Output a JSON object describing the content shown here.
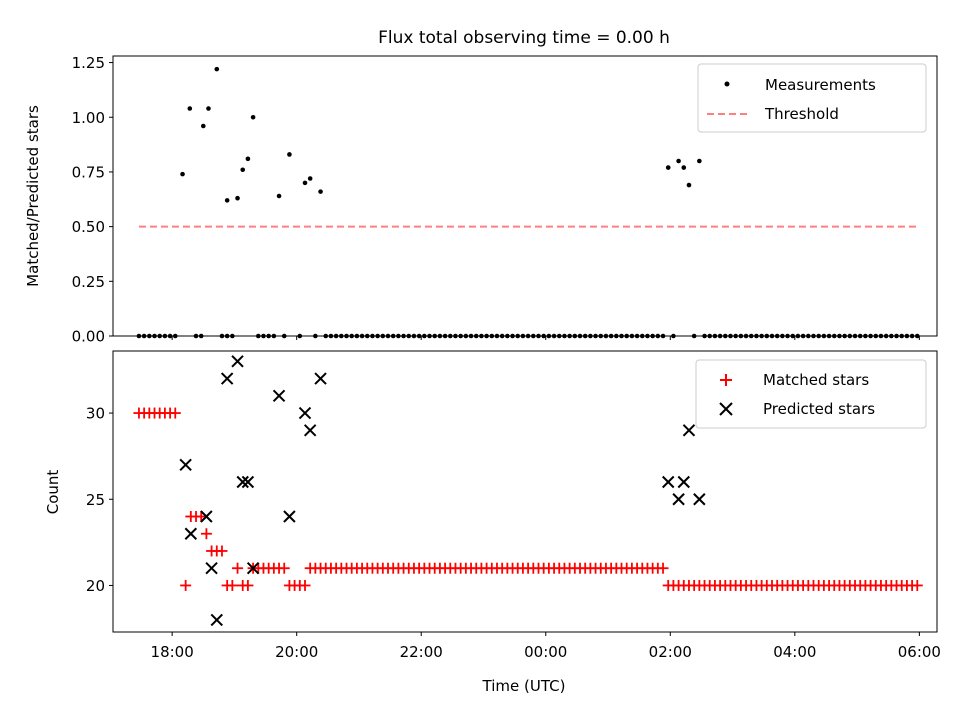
{
  "chart_data": [
    {
      "type": "scatter",
      "title": "Flux total observing time = 0.00 h",
      "xlabel": "",
      "ylabel": "Matched/Predicted stars",
      "xlim": [
        "17:03",
        "06:17"
      ],
      "ylim": [
        0,
        1.28
      ],
      "yticks": [
        0.0,
        0.25,
        0.5,
        0.75,
        1.0,
        1.25
      ],
      "yticklabels": [
        "0.00",
        "0.25",
        "0.50",
        "0.75",
        "1.00",
        "1.25"
      ],
      "legend_position": "top-right",
      "series": [
        {
          "name": "Measurements",
          "marker": "dot",
          "color": "#000000",
          "points": [
            [
              "18:10",
              0.74
            ],
            [
              "18:17",
              1.04
            ],
            [
              "18:30",
              0.96
            ],
            [
              "18:35",
              1.04
            ],
            [
              "18:43",
              1.22
            ],
            [
              "18:53",
              0.62
            ],
            [
              "19:03",
              0.63
            ],
            [
              "19:08",
              0.76
            ],
            [
              "19:13",
              0.81
            ],
            [
              "19:18",
              1.0
            ],
            [
              "19:43",
              0.64
            ],
            [
              "19:53",
              0.83
            ],
            [
              "20:08",
              0.7
            ],
            [
              "20:13",
              0.72
            ],
            [
              "20:23",
              0.66
            ],
            [
              "01:58",
              0.77
            ],
            [
              "02:08",
              0.8
            ],
            [
              "02:13",
              0.77
            ],
            [
              "02:18",
              0.69
            ],
            [
              "02:28",
              0.8
            ]
          ],
          "zero_runs": [
            [
              "17:28",
              "18:03"
            ],
            [
              "18:23",
              "18:28"
            ],
            [
              "18:48",
              "18:58"
            ],
            [
              "19:23",
              "19:38"
            ],
            [
              "19:48",
              "19:48"
            ],
            [
              "20:03",
              "20:03"
            ],
            [
              "20:18",
              "20:18"
            ],
            [
              "20:28",
              "01:53"
            ],
            [
              "02:03",
              "02:03"
            ],
            [
              "02:23",
              "02:23"
            ],
            [
              "02:33",
              "05:58"
            ]
          ]
        },
        {
          "name": "Threshold",
          "style": "dashed",
          "color": "#ff7f7f",
          "x": [
            "17:28",
            "05:58"
          ],
          "y": [
            0.5,
            0.5
          ]
        }
      ]
    },
    {
      "type": "scatter",
      "xlabel": "Time (UTC)",
      "ylabel": "Count",
      "xlim": [
        "17:03",
        "06:17"
      ],
      "ylim": [
        17.3,
        33.6
      ],
      "xticks": [
        "18:00",
        "20:00",
        "22:00",
        "00:00",
        "02:00",
        "04:00",
        "06:00"
      ],
      "yticks": [
        20,
        25,
        30
      ],
      "legend_position": "top-right",
      "series": [
        {
          "name": "Matched stars",
          "marker": "plus",
          "color": "#ff0000",
          "runs": [
            [
              "17:28",
              "18:03",
              30
            ],
            [
              "18:13",
              "18:13",
              20
            ],
            [
              "18:18",
              "18:28",
              24
            ],
            [
              "18:33",
              "18:33",
              23
            ],
            [
              "18:38",
              "18:48",
              22
            ],
            [
              "18:53",
              "18:58",
              20
            ],
            [
              "19:03",
              "19:03",
              21
            ],
            [
              "19:08",
              "19:13",
              20
            ],
            [
              "19:18",
              "19:48",
              21
            ],
            [
              "19:53",
              "20:08",
              20
            ],
            [
              "20:13",
              "01:53",
              21
            ],
            [
              "01:58",
              "05:58",
              20
            ]
          ]
        },
        {
          "name": "Predicted stars",
          "marker": "x",
          "color": "#000000",
          "points": [
            [
              "18:13",
              27
            ],
            [
              "18:18",
              23
            ],
            [
              "18:33",
              24
            ],
            [
              "18:38",
              21
            ],
            [
              "18:43",
              18
            ],
            [
              "18:53",
              32
            ],
            [
              "19:03",
              33
            ],
            [
              "19:08",
              26
            ],
            [
              "19:13",
              26
            ],
            [
              "19:18",
              21
            ],
            [
              "19:43",
              31
            ],
            [
              "19:53",
              24
            ],
            [
              "20:08",
              30
            ],
            [
              "20:13",
              29
            ],
            [
              "20:23",
              32
            ],
            [
              "01:58",
              26
            ],
            [
              "02:08",
              25
            ],
            [
              "02:13",
              26
            ],
            [
              "02:18",
              29
            ],
            [
              "02:28",
              25
            ]
          ]
        }
      ]
    }
  ]
}
